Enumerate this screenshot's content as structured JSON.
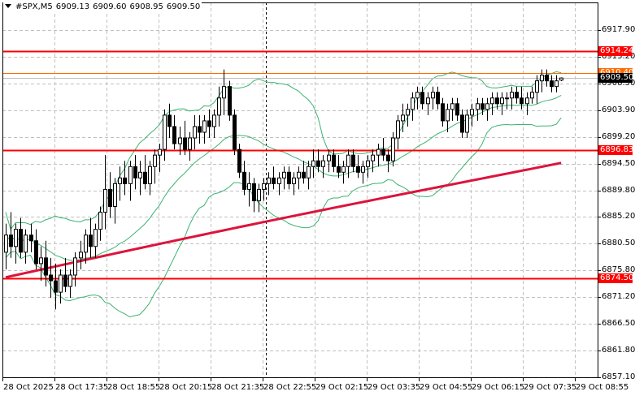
{
  "header": {
    "symbol": "#SPX,M5",
    "open": "6909.13",
    "high": "6909.60",
    "low": "6908.95",
    "close": "6909.50"
  },
  "colors": {
    "background": "#ffffff",
    "grid": "#c0c0c0",
    "candle": "#000000",
    "bollinger": "#3cb371",
    "moving_average": "#dc143c",
    "level_line": "#ff0000",
    "ask_line": "#ff6a00",
    "bid_line": "#c0c0c0",
    "bid_tag": "#000000"
  },
  "y_axis": {
    "ticks": [
      "6917.90",
      "6913.20",
      "6908.50",
      "6903.90",
      "6899.20",
      "6894.50",
      "6889.80",
      "6885.20",
      "6880.50",
      "6875.80",
      "6871.20",
      "6866.50",
      "6861.80",
      "6857.10"
    ]
  },
  "x_axis": {
    "ticks": [
      "28 Oct 2025",
      "28 Oct 17:35",
      "28 Oct 18:55",
      "28 Oct 20:15",
      "28 Oct 21:35",
      "28 Oct 22:55",
      "29 Oct 02:15",
      "29 Oct 03:35",
      "29 Oct 04:55",
      "29 Oct 06:15",
      "29 Oct 07:35",
      "29 Oct 08:55"
    ]
  },
  "price_tags": [
    {
      "label": "6914.24",
      "price": 6914.24,
      "color": "#ff0000"
    },
    {
      "label": "6910.40",
      "price": 6910.4,
      "color": "#ff6a00"
    },
    {
      "label": "6909.50",
      "price": 6909.5,
      "color": "#000000"
    },
    {
      "label": "6896.83",
      "price": 6896.83,
      "color": "#ff0000"
    },
    {
      "label": "6874.50",
      "price": 6874.5,
      "color": "#ff0000"
    }
  ],
  "chart_data": {
    "type": "candlestick",
    "title": "#SPX,M5",
    "xlabel": "",
    "ylabel": "",
    "ylim": [
      6857.1,
      6922.8
    ],
    "grid": true,
    "horizontal_levels": [
      6914.24,
      6896.83,
      6874.5
    ],
    "ask_price": 6910.4,
    "bid_price": 6909.5,
    "session_separator_x": "28 Oct 22:55",
    "indicators": [
      "Bollinger Bands (green)",
      "Moving Average (crimson)"
    ],
    "candles": [
      [
        6879,
        6884,
        6876,
        6882
      ],
      [
        6882,
        6886,
        6878,
        6880
      ],
      [
        6880,
        6884,
        6877,
        6883
      ],
      [
        6883,
        6885,
        6878,
        6879
      ],
      [
        6879,
        6883,
        6877,
        6882
      ],
      [
        6882,
        6884,
        6879,
        6881
      ],
      [
        6881,
        6883,
        6876,
        6877
      ],
      [
        6877,
        6880,
        6874,
        6878
      ],
      [
        6878,
        6881,
        6873,
        6875
      ],
      [
        6875,
        6878,
        6871,
        6874
      ],
      [
        6874,
        6877,
        6869,
        6872
      ],
      [
        6872,
        6876,
        6870,
        6875
      ],
      [
        6875,
        6878,
        6872,
        6873
      ],
      [
        6873,
        6876,
        6871,
        6875
      ],
      [
        6875,
        6879,
        6873,
        6878
      ],
      [
        6878,
        6881,
        6876,
        6879
      ],
      [
        6879,
        6883,
        6877,
        6882
      ],
      [
        6882,
        6885,
        6878,
        6880
      ],
      [
        6880,
        6884,
        6878,
        6883
      ],
      [
        6883,
        6887,
        6881,
        6886
      ],
      [
        6886,
        6896,
        6883,
        6890
      ],
      [
        6890,
        6893,
        6885,
        6887
      ],
      [
        6887,
        6892,
        6884,
        6891
      ],
      [
        6891,
        6894,
        6888,
        6892
      ],
      [
        6892,
        6895,
        6889,
        6891
      ],
      [
        6891,
        6895,
        6888,
        6894
      ],
      [
        6894,
        6896,
        6890,
        6892
      ],
      [
        6892,
        6895,
        6889,
        6893
      ],
      [
        6893,
        6896,
        6890,
        6891
      ],
      [
        6891,
        6895,
        6889,
        6894
      ],
      [
        6894,
        6897,
        6891,
        6896
      ],
      [
        6896,
        6898,
        6893,
        6897
      ],
      [
        6897,
        6904,
        6895,
        6903
      ],
      [
        6903,
        6905,
        6899,
        6901
      ],
      [
        6901,
        6903,
        6897,
        6898
      ],
      [
        6898,
        6901,
        6896,
        6899
      ],
      [
        6899,
        6902,
        6896,
        6897
      ],
      [
        6897,
        6900,
        6895,
        6899
      ],
      [
        6899,
        6903,
        6897,
        6901
      ],
      [
        6901,
        6903,
        6898,
        6900
      ],
      [
        6900,
        6903,
        6898,
        6902
      ],
      [
        6902,
        6904,
        6899,
        6901
      ],
      [
        6901,
        6904,
        6899,
        6903
      ],
      [
        6903,
        6908,
        6901,
        6906
      ],
      [
        6906,
        6911,
        6903,
        6908
      ],
      [
        6908,
        6909,
        6902,
        6903
      ],
      [
        6903,
        6904,
        6896,
        6897
      ],
      [
        6897,
        6898,
        6892,
        6893
      ],
      [
        6893,
        6895,
        6889,
        6890
      ],
      [
        6890,
        6893,
        6887,
        6891
      ],
      [
        6891,
        6892,
        6886,
        6888
      ],
      [
        6888,
        6891,
        6886,
        6890
      ],
      [
        6890,
        6892,
        6888,
        6891
      ],
      [
        6891,
        6893,
        6889,
        6892
      ],
      [
        6892,
        6894,
        6890,
        6891
      ],
      [
        6891,
        6893,
        6889,
        6892
      ],
      [
        6892,
        6894,
        6890,
        6893
      ],
      [
        6893,
        6894,
        6890,
        6891
      ],
      [
        6891,
        6893,
        6889,
        6892
      ],
      [
        6892,
        6894,
        6890,
        6893
      ],
      [
        6893,
        6895,
        6891,
        6892
      ],
      [
        6892,
        6895,
        6890,
        6894
      ],
      [
        6894,
        6897,
        6892,
        6895
      ],
      [
        6895,
        6897,
        6893,
        6894
      ],
      [
        6894,
        6896,
        6892,
        6895
      ],
      [
        6895,
        6897,
        6893,
        6896
      ],
      [
        6896,
        6897,
        6893,
        6894
      ],
      [
        6894,
        6896,
        6892,
        6893
      ],
      [
        6893,
        6895,
        6891,
        6894
      ],
      [
        6894,
        6897,
        6892,
        6896
      ],
      [
        6896,
        6897,
        6893,
        6894
      ],
      [
        6894,
        6896,
        6892,
        6893
      ],
      [
        6893,
        6895,
        6891,
        6894
      ],
      [
        6894,
        6896,
        6892,
        6895
      ],
      [
        6895,
        6897,
        6893,
        6896
      ],
      [
        6896,
        6898,
        6894,
        6897
      ],
      [
        6897,
        6899,
        6895,
        6896
      ],
      [
        6896,
        6897,
        6893,
        6895
      ],
      [
        6895,
        6900,
        6894,
        6899
      ],
      [
        6899,
        6903,
        6897,
        6902
      ],
      [
        6902,
        6905,
        6900,
        6903
      ],
      [
        6903,
        6905,
        6901,
        6904
      ],
      [
        6904,
        6907,
        6902,
        6906
      ],
      [
        6906,
        6908,
        6904,
        6907
      ],
      [
        6907,
        6908,
        6904,
        6905
      ],
      [
        6905,
        6907,
        6903,
        6906
      ],
      [
        6906,
        6908,
        6904,
        6907
      ],
      [
        6907,
        6908,
        6904,
        6905
      ],
      [
        6905,
        6906,
        6901,
        6902
      ],
      [
        6902,
        6905,
        6900,
        6904
      ],
      [
        6904,
        6906,
        6902,
        6905
      ],
      [
        6905,
        6906,
        6902,
        6903
      ],
      [
        6903,
        6904,
        6899,
        6900
      ],
      [
        6900,
        6904,
        6899,
        6903
      ],
      [
        6903,
        6905,
        6901,
        6904
      ],
      [
        6904,
        6906,
        6902,
        6905
      ],
      [
        6905,
        6906,
        6903,
        6904
      ],
      [
        6904,
        6906,
        6902,
        6905
      ],
      [
        6905,
        6907,
        6903,
        6906
      ],
      [
        6906,
        6907,
        6904,
        6905
      ],
      [
        6905,
        6907,
        6903,
        6906
      ],
      [
        6906,
        6907,
        6904,
        6906
      ],
      [
        6906,
        6908,
        6904,
        6907
      ],
      [
        6907,
        6908,
        6905,
        6906
      ],
      [
        6906,
        6908,
        6904,
        6905
      ],
      [
        6905,
        6907,
        6903,
        6906
      ],
      [
        6906,
        6908,
        6905,
        6907
      ],
      [
        6907,
        6910,
        6905,
        6909
      ],
      [
        6909,
        6911,
        6907,
        6910
      ],
      [
        6910,
        6911,
        6908,
        6909
      ],
      [
        6909,
        6910,
        6907,
        6908
      ],
      [
        6908,
        6910,
        6907,
        6909
      ],
      [
        6909.13,
        6909.6,
        6908.95,
        6909.5
      ]
    ]
  }
}
